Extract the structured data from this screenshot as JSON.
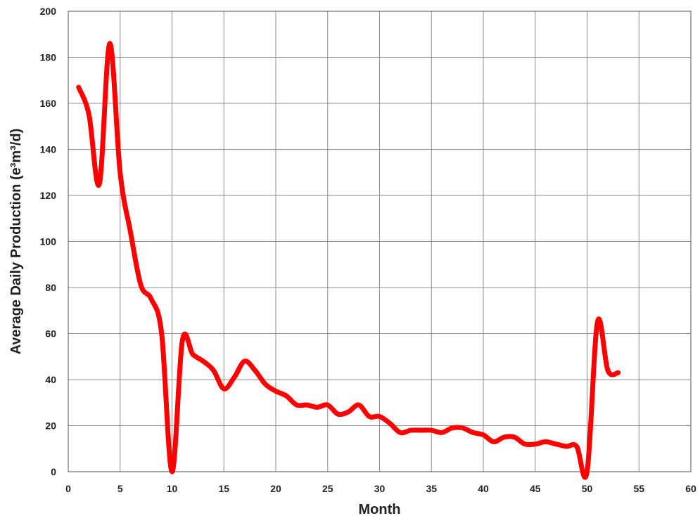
{
  "chart_data": {
    "type": "line",
    "title": "",
    "xlabel": "Month",
    "ylabel": "Average Daily Production (e³m³/d)",
    "xlim": [
      0,
      60
    ],
    "ylim": [
      0,
      200
    ],
    "xticks": [
      0,
      5,
      10,
      15,
      20,
      25,
      30,
      35,
      40,
      45,
      50,
      55,
      60
    ],
    "yticks": [
      0,
      20,
      40,
      60,
      80,
      100,
      120,
      140,
      160,
      180,
      200
    ],
    "grid": true,
    "legend": "none",
    "series": [
      {
        "color": "#ff0000",
        "x": [
          1,
          2,
          3,
          4,
          5,
          6,
          7,
          8,
          9,
          10,
          11,
          12,
          13,
          14,
          15,
          16,
          17,
          18,
          19,
          20,
          21,
          22,
          23,
          24,
          25,
          26,
          27,
          28,
          29,
          30,
          31,
          32,
          33,
          34,
          35,
          36,
          37,
          38,
          39,
          40,
          41,
          42,
          43,
          44,
          45,
          46,
          47,
          48,
          49,
          50,
          51,
          52,
          53
        ],
        "y": [
          167,
          155,
          125,
          186,
          130,
          104,
          81,
          75,
          60,
          0,
          57,
          51,
          48,
          44,
          36,
          41,
          48,
          44,
          38,
          35,
          33,
          29,
          29,
          28,
          29,
          25,
          26,
          29,
          24,
          24,
          21,
          17,
          18,
          18,
          18,
          17,
          19,
          19,
          17,
          16,
          13,
          15,
          15,
          12,
          12,
          13,
          12,
          11,
          11,
          0,
          65,
          44,
          43
        ]
      }
    ]
  }
}
